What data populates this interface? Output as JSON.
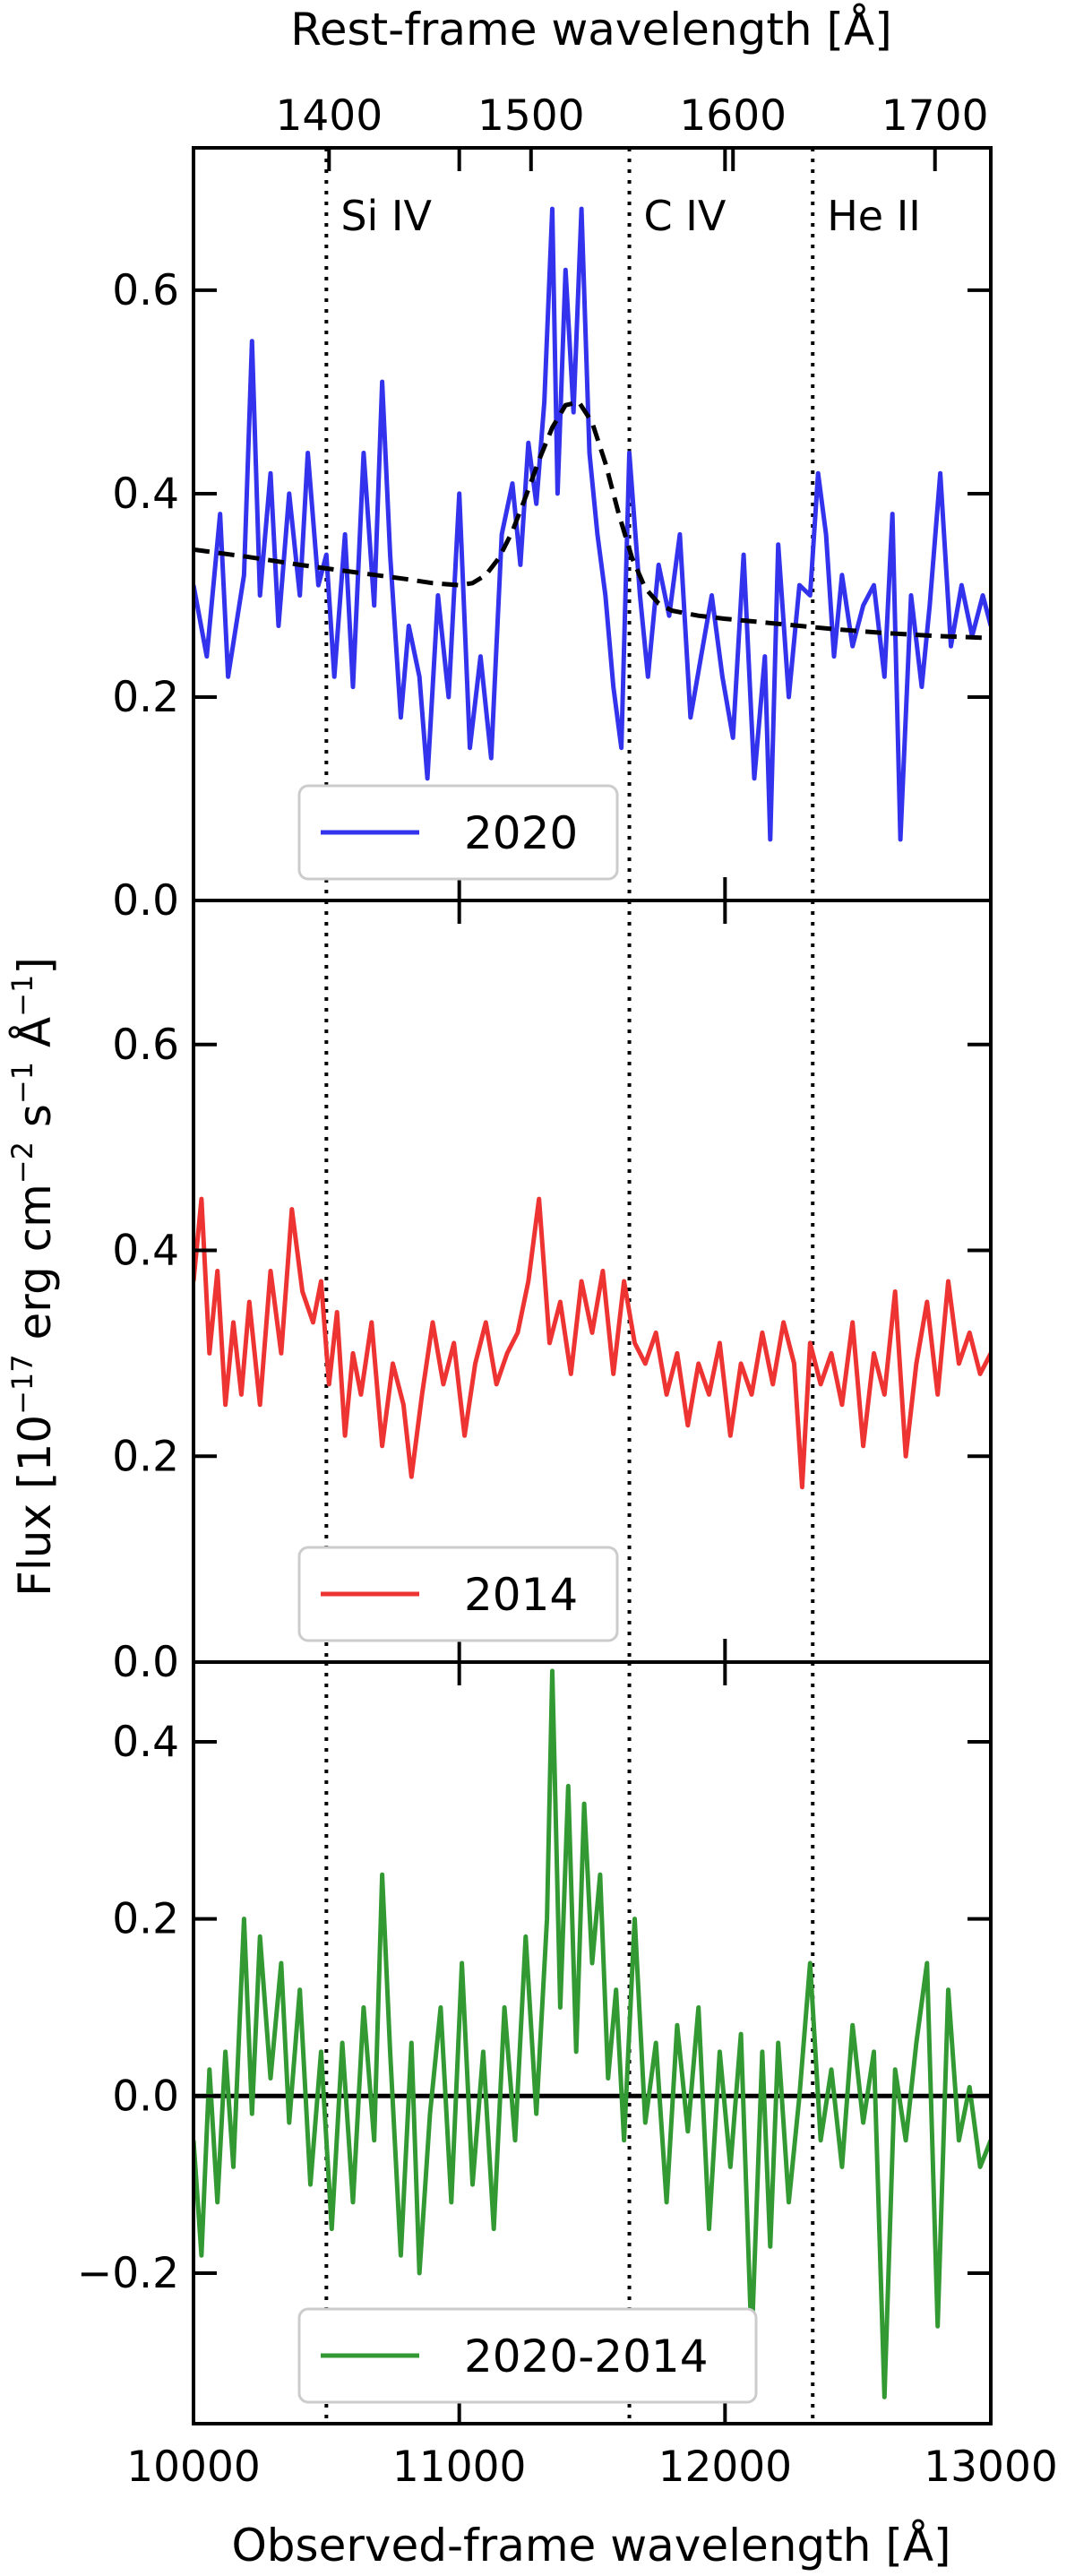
{
  "chart_data": {
    "type": "line",
    "x_label": "Observed-frame wavelength [Å]",
    "top_x_label": "Rest-frame wavelength [Å]",
    "y_label": "Flux [10^-17 erg cm^-2 s^-1 Å^-1]",
    "xlim": [
      10000,
      13000
    ],
    "x_ticks": [
      "10000",
      "11000",
      "12000",
      "13000"
    ],
    "top_x_ticks": [
      "1400",
      "1500",
      "1600",
      "1700"
    ],
    "top_x_tick_positions": [
      10510,
      11270,
      12030,
      12790
    ],
    "emission_lines": [
      {
        "label": "Si IV",
        "x": 10500
      },
      {
        "label": "C IV",
        "x": 11640
      },
      {
        "label": "He II",
        "x": 12330
      }
    ],
    "panels": [
      {
        "ylim": [
          0.0,
          0.74
        ],
        "y_ticks": [
          {
            "v": 0.0,
            "label": "0.0"
          },
          {
            "v": 0.2,
            "label": "0.2"
          },
          {
            "v": 0.4,
            "label": "0.4"
          },
          {
            "v": 0.6,
            "label": "0.6"
          }
        ],
        "show_line_labels": true,
        "series": [
          {
            "name": "2020",
            "color": "#3333ee",
            "x": [
              10000,
              10050,
              10100,
              10130,
              10160,
              10190,
              10220,
              10250,
              10290,
              10320,
              10360,
              10400,
              10430,
              10470,
              10500,
              10530,
              10570,
              10600,
              10640,
              10680,
              10710,
              10740,
              10780,
              10810,
              10850,
              10880,
              10920,
              10960,
              11000,
              11040,
              11080,
              11120,
              11160,
              11200,
              11230,
              11260,
              11290,
              11320,
              11350,
              11370,
              11400,
              11430,
              11460,
              11490,
              11520,
              11550,
              11580,
              11610,
              11640,
              11680,
              11710,
              11750,
              11790,
              11830,
              11870,
              11910,
              11950,
              11990,
              12030,
              12070,
              12110,
              12150,
              12170,
              12200,
              12240,
              12280,
              12320,
              12350,
              12380,
              12410,
              12440,
              12480,
              12520,
              12560,
              12600,
              12630,
              12660,
              12700,
              12740,
              12770,
              12810,
              12850,
              12890,
              12930,
              12970,
              13000
            ],
            "y": [
              0.31,
              0.24,
              0.38,
              0.22,
              0.27,
              0.32,
              0.55,
              0.3,
              0.42,
              0.27,
              0.4,
              0.3,
              0.44,
              0.31,
              0.34,
              0.22,
              0.36,
              0.21,
              0.44,
              0.29,
              0.51,
              0.34,
              0.18,
              0.27,
              0.22,
              0.12,
              0.3,
              0.2,
              0.4,
              0.15,
              0.24,
              0.14,
              0.36,
              0.41,
              0.33,
              0.45,
              0.39,
              0.49,
              0.68,
              0.4,
              0.62,
              0.48,
              0.68,
              0.44,
              0.36,
              0.3,
              0.21,
              0.15,
              0.44,
              0.3,
              0.22,
              0.33,
              0.28,
              0.36,
              0.18,
              0.24,
              0.3,
              0.22,
              0.16,
              0.34,
              0.12,
              0.24,
              0.06,
              0.35,
              0.2,
              0.31,
              0.3,
              0.42,
              0.36,
              0.24,
              0.32,
              0.25,
              0.29,
              0.31,
              0.22,
              0.38,
              0.06,
              0.3,
              0.21,
              0.29,
              0.42,
              0.25,
              0.31,
              0.26,
              0.3,
              0.27
            ]
          },
          {
            "name": "",
            "color": "#000000",
            "dashed": true,
            "x": [
              10000,
              10200,
              10400,
              10600,
              10800,
              10900,
              11000,
              11050,
              11100,
              11150,
              11200,
              11250,
              11300,
              11350,
              11400,
              11450,
              11500,
              11550,
              11600,
              11650,
              11700,
              11750,
              11800,
              11900,
              12000,
              12200,
              12400,
              12600,
              12800,
              13000
            ],
            "y": [
              0.345,
              0.338,
              0.33,
              0.323,
              0.316,
              0.312,
              0.31,
              0.312,
              0.32,
              0.337,
              0.363,
              0.397,
              0.433,
              0.465,
              0.487,
              0.49,
              0.47,
              0.43,
              0.38,
              0.337,
              0.307,
              0.292,
              0.285,
              0.28,
              0.277,
              0.272,
              0.267,
              0.263,
              0.26,
              0.258
            ]
          }
        ],
        "legend": {
          "label": "2020",
          "color": "#3333ee",
          "placement": "lower-center"
        }
      },
      {
        "ylim": [
          0.0,
          0.74
        ],
        "y_ticks": [
          {
            "v": 0.0,
            "label": "0.0"
          },
          {
            "v": 0.2,
            "label": "0.2"
          },
          {
            "v": 0.4,
            "label": "0.4"
          },
          {
            "v": 0.6,
            "label": "0.6"
          }
        ],
        "show_line_labels": false,
        "series": [
          {
            "name": "2014",
            "color": "#ee3333",
            "x": [
              10000,
              10030,
              10060,
              10090,
              10120,
              10150,
              10180,
              10210,
              10250,
              10290,
              10330,
              10370,
              10410,
              10450,
              10480,
              10510,
              10540,
              10570,
              10600,
              10630,
              10670,
              10710,
              10750,
              10790,
              10820,
              10860,
              10900,
              10940,
              10980,
              11020,
              11060,
              11100,
              11140,
              11180,
              11220,
              11260,
              11300,
              11340,
              11380,
              11420,
              11460,
              11500,
              11540,
              11580,
              11620,
              11660,
              11700,
              11740,
              11780,
              11820,
              11860,
              11900,
              11940,
              11980,
              12020,
              12060,
              12100,
              12140,
              12180,
              12220,
              12260,
              12290,
              12320,
              12360,
              12400,
              12440,
              12480,
              12520,
              12560,
              12600,
              12640,
              12680,
              12720,
              12760,
              12800,
              12840,
              12880,
              12920,
              12960,
              13000
            ],
            "y": [
              0.37,
              0.45,
              0.3,
              0.38,
              0.25,
              0.33,
              0.26,
              0.35,
              0.25,
              0.38,
              0.3,
              0.44,
              0.36,
              0.33,
              0.37,
              0.27,
              0.34,
              0.22,
              0.3,
              0.26,
              0.33,
              0.21,
              0.29,
              0.25,
              0.18,
              0.26,
              0.33,
              0.27,
              0.31,
              0.22,
              0.29,
              0.33,
              0.27,
              0.3,
              0.32,
              0.37,
              0.45,
              0.31,
              0.35,
              0.28,
              0.37,
              0.32,
              0.38,
              0.28,
              0.37,
              0.31,
              0.29,
              0.32,
              0.26,
              0.3,
              0.23,
              0.29,
              0.26,
              0.31,
              0.22,
              0.29,
              0.26,
              0.32,
              0.27,
              0.33,
              0.29,
              0.17,
              0.31,
              0.27,
              0.3,
              0.25,
              0.33,
              0.21,
              0.3,
              0.26,
              0.36,
              0.2,
              0.29,
              0.35,
              0.26,
              0.37,
              0.29,
              0.32,
              0.28,
              0.3
            ]
          }
        ],
        "legend": {
          "label": "2014",
          "color": "#ee3333",
          "placement": "lower-center"
        }
      },
      {
        "ylim": [
          -0.37,
          0.49
        ],
        "y_ticks": [
          {
            "v": -0.2,
            "label": "−0.2"
          },
          {
            "v": 0.0,
            "label": "0.0"
          },
          {
            "v": 0.2,
            "label": "0.2"
          },
          {
            "v": 0.4,
            "label": "0.4"
          }
        ],
        "show_line_labels": false,
        "zero_line": true,
        "series": [
          {
            "name": "2020-2014",
            "color": "#339933",
            "x": [
              10000,
              10030,
              10060,
              10090,
              10120,
              10150,
              10190,
              10220,
              10250,
              10290,
              10330,
              10360,
              10400,
              10440,
              10480,
              10520,
              10560,
              10600,
              10640,
              10680,
              10710,
              10740,
              10780,
              10820,
              10850,
              10890,
              10930,
              10970,
              11010,
              11050,
              11090,
              11130,
              11170,
              11210,
              11250,
              11290,
              11330,
              11350,
              11380,
              11410,
              11440,
              11470,
              11500,
              11530,
              11560,
              11590,
              11620,
              11660,
              11700,
              11740,
              11780,
              11820,
              11860,
              11900,
              11940,
              11980,
              12020,
              12060,
              12100,
              12140,
              12170,
              12200,
              12240,
              12280,
              12320,
              12360,
              12400,
              12440,
              12480,
              12520,
              12560,
              12600,
              12640,
              12680,
              12720,
              12760,
              12800,
              12840,
              12880,
              12920,
              12960,
              13000
            ],
            "y": [
              -0.05,
              -0.18,
              0.03,
              -0.12,
              0.05,
              -0.08,
              0.2,
              -0.02,
              0.18,
              0.02,
              0.15,
              -0.03,
              0.12,
              -0.1,
              0.05,
              -0.15,
              0.06,
              -0.12,
              0.1,
              -0.05,
              0.25,
              0.05,
              -0.18,
              0.06,
              -0.2,
              -0.02,
              0.1,
              -0.12,
              0.15,
              -0.1,
              0.05,
              -0.15,
              0.1,
              -0.05,
              0.18,
              -0.02,
              0.2,
              0.48,
              0.1,
              0.35,
              0.05,
              0.33,
              0.15,
              0.25,
              0.02,
              0.12,
              -0.05,
              0.2,
              -0.03,
              0.06,
              -0.12,
              0.08,
              -0.04,
              0.1,
              -0.15,
              0.05,
              -0.08,
              0.07,
              -0.28,
              0.05,
              -0.17,
              0.06,
              -0.12,
              0.0,
              0.15,
              -0.05,
              0.03,
              -0.08,
              0.08,
              -0.03,
              0.05,
              -0.34,
              0.03,
              -0.05,
              0.06,
              0.15,
              -0.26,
              0.12,
              -0.05,
              0.01,
              -0.08,
              -0.05
            ]
          }
        ],
        "legend": {
          "label": "2020-2014",
          "color": "#339933",
          "placement": "lower-center"
        }
      }
    ]
  }
}
